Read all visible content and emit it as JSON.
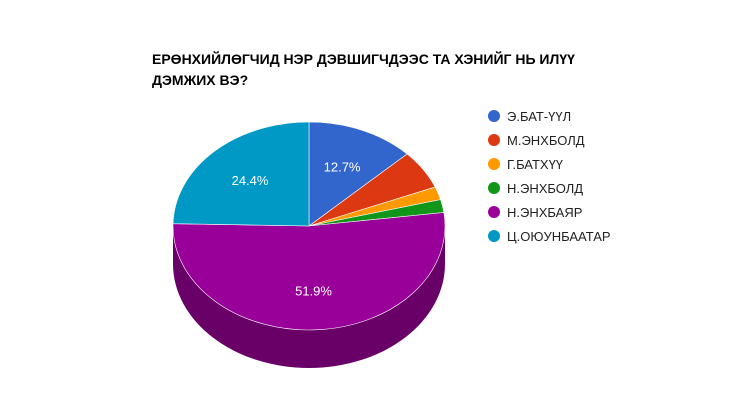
{
  "chart_data": {
    "type": "pie",
    "title_lines": [
      "ЕРӨНХИЙЛӨГЧИД НЭР ДЭВШИГЧДЭЭС ТА ХЭНИЙГ НЬ ИЛҮҮ",
      "ДЭМЖИХ ВЭ?"
    ],
    "three_d": true,
    "legend_position": "right",
    "slices": [
      {
        "name": "Э.БАТ-ҮҮЛ",
        "value": 12.7,
        "label": "12.7%",
        "color": "#3366cc"
      },
      {
        "name": "М.ЭНХБОЛД",
        "value": 6.0,
        "label": "",
        "color": "#dc3912"
      },
      {
        "name": "Г.БАТХҮҮ",
        "value": 2.0,
        "label": "",
        "color": "#ff9900"
      },
      {
        "name": "Н.ЭНХБОЛД",
        "value": 2.0,
        "label": "",
        "color": "#109618"
      },
      {
        "name": "Н.ЭНХБАЯР",
        "value": 51.9,
        "label": "51.9%",
        "color": "#990099"
      },
      {
        "name": "Ц.ОЮУНБААТАР",
        "value": 24.4,
        "label": "24.4%",
        "color": "#0099c6"
      }
    ]
  }
}
